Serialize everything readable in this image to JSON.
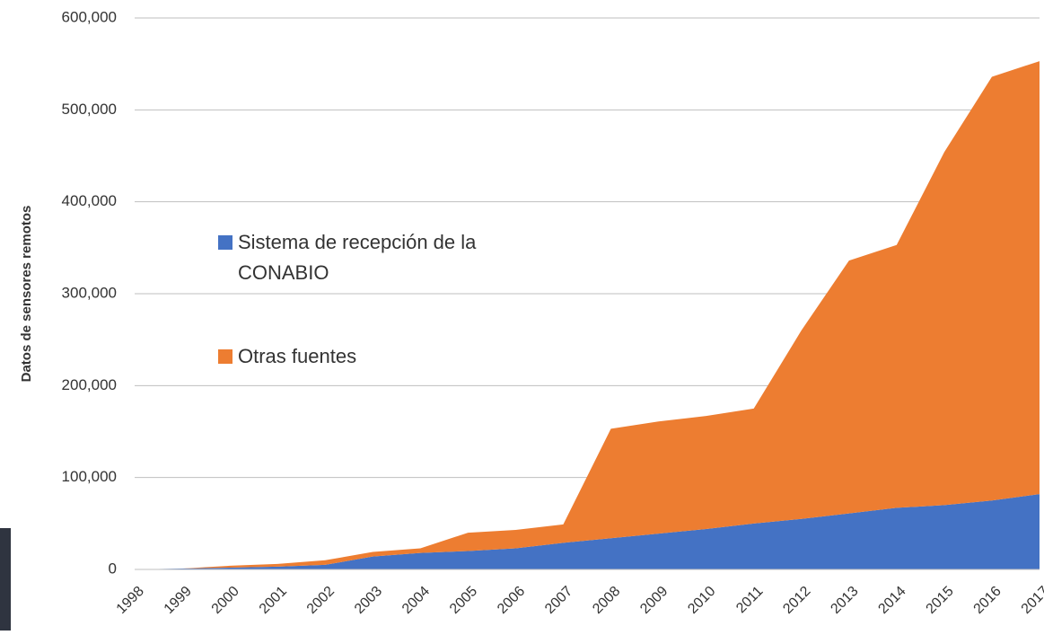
{
  "chart_data": {
    "type": "area",
    "stacked": true,
    "ylabel": "Datos de sensores remotos",
    "categories": [
      "1998",
      "1999",
      "2000",
      "2001",
      "2002",
      "2003",
      "2004",
      "2005",
      "2006",
      "2007",
      "2008",
      "2009",
      "2010",
      "2011",
      "2012",
      "2013",
      "2014",
      "2015",
      "2016",
      "2017"
    ],
    "series": [
      {
        "name": "Sistema de recepción de la CONABIO",
        "color": "#4472c4",
        "values": [
          0,
          1000,
          2000,
          3000,
          5000,
          14000,
          18000,
          20000,
          23000,
          29000,
          34000,
          39000,
          44000,
          50000,
          55000,
          61000,
          67000,
          70000,
          75000,
          82000
        ]
      },
      {
        "name": "Otras fuentes",
        "color": "#ed7d31",
        "values": [
          0,
          0,
          2000,
          3000,
          5000,
          5000,
          5000,
          20000,
          20000,
          20000,
          119000,
          122000,
          123000,
          125000,
          205000,
          275000,
          286000,
          384000,
          461000,
          471000
        ]
      }
    ],
    "ylim": [
      0,
      600000
    ],
    "yticks": [
      0,
      {
        "value": 100000,
        "label": "100,000"
      },
      {
        "value": 200000,
        "label": "200,000"
      },
      {
        "value": 300000,
        "label": "300,000"
      },
      {
        "value": 400000,
        "label": "400,000"
      },
      {
        "value": 500000,
        "label": "500,000"
      },
      {
        "value": 600000,
        "label": "600,000"
      }
    ],
    "grid": true,
    "legend": "left"
  }
}
